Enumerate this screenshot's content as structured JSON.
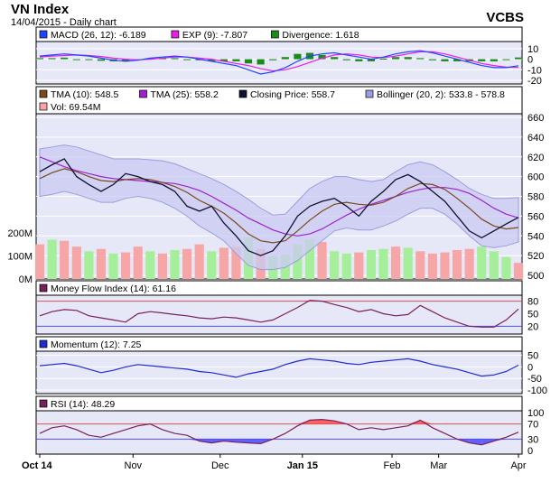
{
  "header": {
    "title": "VN Index",
    "subtitle": "14/04/2015 - Daily chart",
    "brand": "VCBS"
  },
  "colors": {
    "panel_bg": "#e6e8f7",
    "macd": "#2244ff",
    "exp": "#e61ee6",
    "divergence": "#1a8a1a",
    "tma10": "#7a4a1e",
    "tma25": "#a020d0",
    "close": "#101030",
    "bollinger_fill": "#c9cbf2",
    "bollinger_edge": "#9a9ce0",
    "vol_up": "#a6ef9a",
    "vol_down": "#f6a6a6",
    "mfi": "#7a1f5c",
    "momentum": "#1f2bd0",
    "rsi": "#7a1f5c",
    "overbought_fill": "#ff6060",
    "oversold_fill": "#6060ff",
    "overbought_line": "#e05050",
    "oversold_line": "#5050e0"
  },
  "chart_data": [
    {
      "type": "bar",
      "panel": "MACD",
      "legend": [
        {
          "label": "MACD (26, 12): -6.189",
          "color": "#2244ff"
        },
        {
          "label": "EXP (9): -7.807",
          "color": "#e61ee6"
        },
        {
          "label": "Divergence: 1.618",
          "color": "#1a8a1a"
        }
      ],
      "ylim": [
        -20,
        15
      ],
      "yticks": [
        10,
        0,
        -10,
        -20
      ],
      "series": [
        {
          "name": "MACD (26, 12)",
          "style": "line",
          "values": [
            3,
            4,
            5,
            4,
            3,
            1,
            -1,
            -2,
            -1,
            1,
            2,
            3,
            2,
            0,
            -2,
            -4,
            -6,
            -10,
            -14,
            -12,
            -8,
            -2,
            3,
            5,
            6,
            4,
            2,
            0,
            2,
            5,
            7,
            8,
            6,
            3,
            0,
            -3,
            -6,
            -8,
            -8,
            -6.189
          ]
        },
        {
          "name": "EXP (9)",
          "style": "line",
          "values": [
            2,
            3,
            3.5,
            4,
            3.5,
            2.5,
            1,
            0,
            -0.5,
            0,
            1,
            2,
            2,
            1,
            0,
            -2,
            -4,
            -6,
            -9,
            -11,
            -10,
            -7,
            -3,
            1,
            4,
            5,
            4,
            2,
            1.5,
            3,
            5,
            7,
            7,
            5,
            2,
            -1,
            -4,
            -6,
            -7.5,
            -7.807
          ]
        },
        {
          "name": "Divergence",
          "style": "bar",
          "values": [
            1,
            1,
            1.5,
            0,
            -0.5,
            -1.5,
            -2,
            -2,
            -0.5,
            1,
            1,
            1,
            0,
            -1,
            -2,
            -2,
            -2,
            -4,
            -5,
            -1,
            2,
            5,
            6,
            4,
            2,
            -1,
            -2,
            -2,
            0.5,
            2,
            2,
            1,
            -1,
            -2,
            -2,
            -2,
            -2,
            -2,
            -0.5,
            1.618
          ]
        }
      ]
    },
    {
      "type": "line",
      "panel": "Price",
      "legend": [
        {
          "label": "TMA (10): 548.5",
          "color": "#7a4a1e"
        },
        {
          "label": "TMA (25): 558.2",
          "color": "#a020d0"
        },
        {
          "label": "Closing Price: 558.7",
          "color": "#101030"
        },
        {
          "label": "Bollinger (20, 2): 533.8 - 578.8",
          "color": "#9a9ce0"
        }
      ],
      "ylim": [
        500,
        660
      ],
      "yticks": [
        660,
        640,
        620,
        600,
        580,
        560,
        540,
        520,
        500
      ],
      "series": [
        {
          "name": "Closing Price",
          "values": [
            605,
            612,
            618,
            600,
            592,
            585,
            592,
            603,
            600,
            595,
            592,
            585,
            570,
            565,
            570,
            553,
            540,
            525,
            520,
            525,
            540,
            560,
            570,
            575,
            578,
            570,
            560,
            575,
            585,
            597,
            602,
            595,
            585,
            575,
            560,
            545,
            538,
            545,
            552,
            558.7
          ]
        },
        {
          "name": "TMA (10)",
          "values": [
            598,
            604,
            608,
            605,
            600,
            596,
            595,
            597,
            598,
            597,
            594,
            590,
            584,
            576,
            570,
            563,
            553,
            542,
            535,
            533,
            535,
            545,
            556,
            565,
            572,
            574,
            572,
            571,
            574,
            580,
            588,
            593,
            592,
            587,
            578,
            568,
            557,
            550,
            547,
            548.5
          ]
        },
        {
          "name": "TMA (25)",
          "values": [
            620,
            615,
            610,
            606,
            603,
            600,
            598,
            597,
            596,
            595,
            594,
            593,
            590,
            586,
            580,
            573,
            566,
            558,
            552,
            546,
            542,
            540,
            542,
            547,
            554,
            561,
            567,
            572,
            576,
            580,
            584,
            587,
            589,
            589,
            587,
            583,
            576,
            568,
            562,
            558.2
          ]
        },
        {
          "name": "Bollinger upper",
          "values": [
            628,
            630,
            632,
            630,
            626,
            622,
            618,
            618,
            618,
            617,
            616,
            613,
            608,
            603,
            598,
            592,
            585,
            577,
            568,
            561,
            562,
            575,
            588,
            595,
            600,
            600,
            597,
            595,
            597,
            605,
            612,
            615,
            612,
            605,
            597,
            588,
            582,
            578,
            578,
            578.8
          ]
        },
        {
          "name": "Bollinger lower",
          "values": [
            580,
            582,
            585,
            582,
            578,
            574,
            574,
            578,
            580,
            578,
            574,
            568,
            560,
            550,
            543,
            535,
            522,
            510,
            506,
            506,
            508,
            515,
            525,
            535,
            545,
            548,
            546,
            546,
            550,
            555,
            562,
            568,
            568,
            562,
            552,
            540,
            530,
            528,
            530,
            533.8
          ]
        }
      ]
    },
    {
      "type": "bar",
      "panel": "Volume",
      "legend": [
        {
          "label": "Vol: 69.54M",
          "color": "#f6a6a6"
        }
      ],
      "ylim": [
        0,
        250
      ],
      "yticks_labels": [
        "200M",
        "100M",
        "0M"
      ],
      "yticks": [
        200,
        100,
        0
      ],
      "series": [
        {
          "name": "Vol",
          "values": [
            150,
            170,
            165,
            140,
            120,
            130,
            110,
            115,
            140,
            120,
            110,
            125,
            130,
            150,
            120,
            135,
            140,
            180,
            130,
            100,
            105,
            150,
            170,
            160,
            120,
            110,
            115,
            125,
            130,
            140,
            135,
            120,
            110,
            115,
            125,
            130,
            140,
            120,
            95,
            69.54
          ],
          "direction": [
            "down",
            "up",
            "down",
            "down",
            "up",
            "down",
            "up",
            "down",
            "down",
            "up",
            "down",
            "up",
            "down",
            "down",
            "up",
            "down",
            "down",
            "up",
            "down",
            "up",
            "up",
            "up",
            "up",
            "down",
            "up",
            "up",
            "down",
            "up",
            "up",
            "down",
            "up",
            "down",
            "down",
            "down",
            "down",
            "down",
            "up",
            "up",
            "up",
            "down"
          ]
        }
      ]
    },
    {
      "type": "line",
      "panel": "MFI",
      "legend": [
        {
          "label": "Money Flow Index (14): 61.16",
          "color": "#7a1f5c"
        }
      ],
      "ylim": [
        10,
        90
      ],
      "yticks": [
        80,
        50,
        20
      ],
      "levels": [
        80,
        20
      ],
      "series": [
        {
          "name": "Money Flow Index (14)",
          "values": [
            45,
            55,
            60,
            58,
            45,
            40,
            35,
            30,
            50,
            55,
            52,
            48,
            45,
            40,
            38,
            42,
            40,
            35,
            30,
            35,
            50,
            65,
            82,
            80,
            72,
            65,
            55,
            60,
            50,
            45,
            48,
            70,
            55,
            40,
            30,
            20,
            18,
            18,
            35,
            61.16
          ]
        }
      ]
    },
    {
      "type": "line",
      "panel": "Momentum",
      "legend": [
        {
          "label": "Momentum (12): 7.25",
          "color": "#1f2bd0"
        }
      ],
      "ylim": [
        -100,
        60
      ],
      "yticks": [
        50,
        0,
        -50,
        -100
      ],
      "series": [
        {
          "name": "Momentum (12)",
          "values": [
            5,
            10,
            15,
            5,
            -10,
            -25,
            -15,
            0,
            10,
            5,
            0,
            -5,
            -10,
            -20,
            -25,
            -35,
            -45,
            -30,
            -20,
            -10,
            10,
            25,
            35,
            30,
            25,
            15,
            10,
            20,
            25,
            30,
            35,
            25,
            10,
            0,
            -10,
            -25,
            -40,
            -35,
            -20,
            7.25
          ]
        }
      ]
    },
    {
      "type": "line",
      "panel": "RSI",
      "legend": [
        {
          "label": "RSI (14): 48.29",
          "color": "#7a1f5c"
        }
      ],
      "ylim": [
        0,
        100
      ],
      "yticks": [
        100,
        70,
        30,
        0
      ],
      "levels": [
        70,
        30
      ],
      "series": [
        {
          "name": "RSI (14)",
          "values": [
            45,
            60,
            65,
            55,
            40,
            35,
            45,
            55,
            65,
            70,
            55,
            45,
            40,
            25,
            20,
            25,
            22,
            20,
            18,
            30,
            45,
            65,
            80,
            82,
            78,
            70,
            55,
            60,
            55,
            60,
            65,
            80,
            60,
            45,
            30,
            20,
            15,
            25,
            35,
            48.29
          ]
        }
      ]
    }
  ],
  "x_axis": {
    "labels": [
      {
        "text": "Oct 14",
        "index": 0
      },
      {
        "text": "Nov",
        "index": 7.6
      },
      {
        "text": "Dec",
        "index": 14.7
      },
      {
        "text": "Jan 15",
        "index": 21.4
      },
      {
        "text": "Feb",
        "index": 28.7
      },
      {
        "text": "Mar",
        "index": 32.5
      },
      {
        "text": "Apr",
        "index": 39
      }
    ]
  }
}
